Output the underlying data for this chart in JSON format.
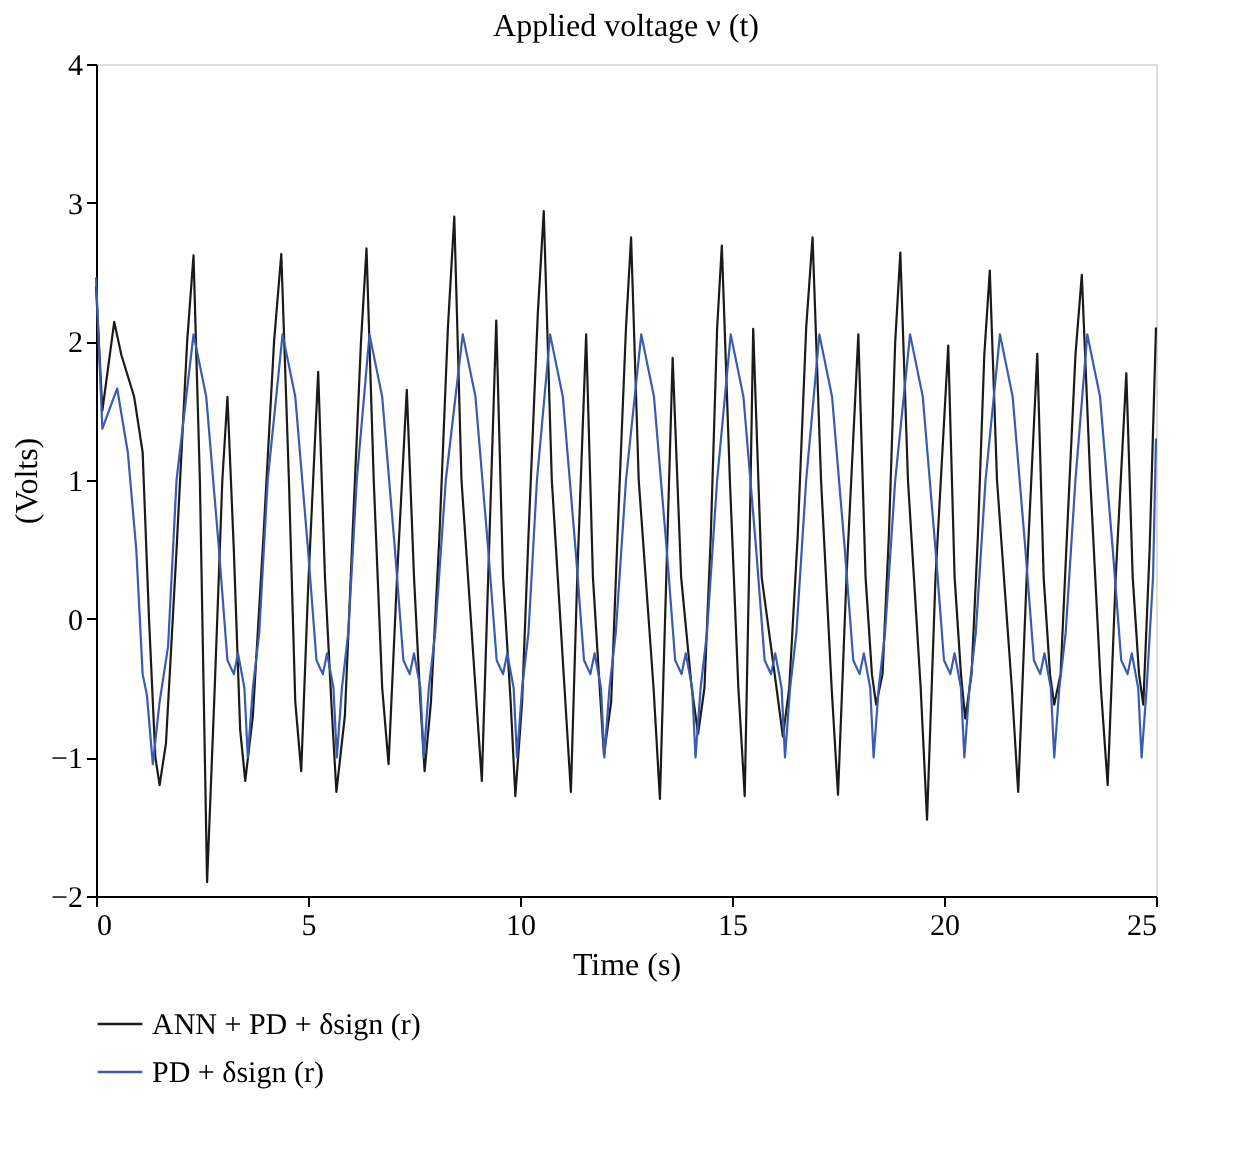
{
  "chart_data": {
    "type": "line",
    "title": "Applied voltage ν (t)",
    "xlabel": "Time (s)",
    "ylabel": "(Volts)",
    "xlim": [
      0,
      25
    ],
    "xticks": [
      0,
      5,
      10,
      15,
      20,
      25
    ],
    "ylim": [
      -2,
      4
    ],
    "yticks": [
      -2,
      -1,
      0,
      1,
      2,
      3,
      4
    ],
    "grid": false,
    "legend": "bottom",
    "series": [
      {
        "name": "ANN + PD + δsign (r)",
        "color": "#1a1a1a",
        "x": [
          0,
          0.15,
          0.43,
          0.6,
          0.9,
          1.1,
          1.25,
          1.4,
          1.5,
          1.65,
          1.9,
          2.15,
          2.3,
          2.45,
          2.62,
          2.8,
          2.98,
          3.1,
          3.25,
          3.4,
          3.52,
          3.7,
          3.95,
          4.2,
          4.37,
          4.55,
          4.7,
          4.84,
          5.0,
          5.24,
          5.4,
          5.55,
          5.67,
          5.87,
          6.05,
          6.25,
          6.38,
          6.55,
          6.75,
          6.9,
          7.1,
          7.33,
          7.5,
          7.65,
          7.75,
          7.9,
          8.1,
          8.3,
          8.45,
          8.62,
          8.95,
          9.1,
          9.25,
          9.44,
          9.6,
          9.78,
          9.89,
          10.05,
          10.2,
          10.42,
          10.56,
          10.75,
          11.05,
          11.2,
          11.35,
          11.56,
          11.72,
          11.88,
          11.98,
          12.15,
          12.3,
          12.5,
          12.62,
          12.8,
          13.15,
          13.3,
          13.45,
          13.6,
          13.8,
          14.05,
          14.2,
          14.35,
          14.5,
          14.65,
          14.76,
          14.95,
          15.15,
          15.3,
          15.4,
          15.5,
          15.7,
          16.05,
          16.2,
          16.35,
          16.55,
          16.75,
          16.9,
          17.1,
          17.35,
          17.5,
          17.7,
          17.98,
          18.15,
          18.3,
          18.4,
          18.55,
          18.7,
          18.85,
          18.97,
          19.15,
          19.45,
          19.6,
          19.8,
          20.1,
          20.25,
          20.4,
          20.5,
          20.65,
          20.8,
          20.95,
          21.08,
          21.25,
          21.6,
          21.75,
          21.95,
          22.2,
          22.35,
          22.5,
          22.6,
          22.75,
          22.9,
          23.1,
          23.25,
          23.45,
          23.7,
          23.86,
          24.05,
          24.3,
          24.45,
          24.6,
          24.7,
          24.85,
          25
        ],
        "values": [
          2.4,
          1.5,
          2.14,
          1.9,
          1.6,
          1.2,
          0.0,
          -1.0,
          -1.2,
          -0.9,
          0.5,
          2.0,
          2.62,
          1.0,
          -1.9,
          -0.5,
          1.0,
          1.6,
          0.5,
          -0.8,
          -1.17,
          -0.7,
          0.6,
          2.0,
          2.63,
          1.0,
          -0.6,
          -1.1,
          0.2,
          1.78,
          0.3,
          -0.6,
          -1.25,
          -0.7,
          0.6,
          2.0,
          2.67,
          1.0,
          -0.5,
          -1.05,
          0.3,
          1.65,
          0.3,
          -0.6,
          -1.1,
          -0.6,
          0.6,
          2.1,
          2.9,
          1.0,
          -0.5,
          -1.17,
          0.3,
          2.15,
          0.3,
          -0.6,
          -1.28,
          -0.6,
          0.6,
          2.2,
          2.94,
          1.0,
          -0.5,
          -1.25,
          0.3,
          2.05,
          0.3,
          -0.5,
          -0.98,
          -0.6,
          0.6,
          2.1,
          2.75,
          1.0,
          -0.5,
          -1.3,
          0.3,
          1.88,
          0.3,
          -0.5,
          -0.83,
          -0.5,
          0.6,
          2.1,
          2.69,
          1.0,
          -0.5,
          -1.28,
          0.3,
          2.09,
          0.3,
          -0.5,
          -0.85,
          -0.5,
          0.6,
          2.1,
          2.75,
          1.0,
          -0.5,
          -1.27,
          0.3,
          2.05,
          0.3,
          -0.4,
          -0.62,
          -0.4,
          0.6,
          2.0,
          2.64,
          1.0,
          -0.5,
          -1.45,
          0.3,
          1.97,
          0.3,
          -0.4,
          -0.72,
          -0.4,
          0.6,
          1.9,
          2.51,
          1.0,
          -0.5,
          -1.25,
          0.3,
          1.91,
          0.3,
          -0.4,
          -0.62,
          -0.4,
          0.6,
          1.9,
          2.48,
          1.0,
          -0.5,
          -1.2,
          0.3,
          1.77,
          0.3,
          -0.4,
          -0.62,
          0.5,
          2.1
        ]
      },
      {
        "name": "PD + δsign (r)",
        "color": "#3a5bb0",
        "x": [
          0,
          0.15,
          0.5,
          0.75,
          0.95,
          1.1,
          1.2,
          1.34,
          1.5,
          1.7,
          1.9,
          2.3,
          2.6,
          2.9,
          3.1,
          3.25,
          3.35,
          3.5,
          3.58,
          3.7,
          3.85,
          4.05,
          4.4,
          4.7,
          5.0,
          5.2,
          5.35,
          5.45,
          5.6,
          5.68,
          5.8,
          5.95,
          6.15,
          6.45,
          6.75,
          7.05,
          7.25,
          7.4,
          7.5,
          7.65,
          7.73,
          7.85,
          8.0,
          8.25,
          8.65,
          8.95,
          9.25,
          9.45,
          9.6,
          9.7,
          9.85,
          9.93,
          10.05,
          10.2,
          10.4,
          10.71,
          11.01,
          11.31,
          11.51,
          11.66,
          11.76,
          11.91,
          11.99,
          12.11,
          12.26,
          12.5,
          12.86,
          13.16,
          13.46,
          13.66,
          13.81,
          13.91,
          14.06,
          14.14,
          14.26,
          14.41,
          14.65,
          14.97,
          15.27,
          15.57,
          15.77,
          15.92,
          16.02,
          16.17,
          16.25,
          16.37,
          16.52,
          16.75,
          17.06,
          17.36,
          17.66,
          17.86,
          18.01,
          18.11,
          18.26,
          18.34,
          18.46,
          18.61,
          18.85,
          19.2,
          19.5,
          19.8,
          20.0,
          20.15,
          20.25,
          20.4,
          20.48,
          20.6,
          20.75,
          20.98,
          21.32,
          21.62,
          21.92,
          22.12,
          22.27,
          22.37,
          22.52,
          22.6,
          22.72,
          22.87,
          23.1,
          23.38,
          23.68,
          23.98,
          24.18,
          24.33,
          24.43,
          24.58,
          24.66,
          24.78,
          24.93,
          25
        ],
        "values": [
          2.46,
          1.37,
          1.66,
          1.2,
          0.5,
          -0.4,
          -0.55,
          -1.05,
          -0.6,
          -0.2,
          1.0,
          2.05,
          1.6,
          0.5,
          -0.3,
          -0.4,
          -0.25,
          -0.5,
          -1.0,
          -0.5,
          -0.1,
          1.0,
          2.05,
          1.6,
          0.5,
          -0.3,
          -0.4,
          -0.25,
          -0.5,
          -1.0,
          -0.5,
          -0.1,
          1.0,
          2.05,
          1.6,
          0.5,
          -0.3,
          -0.4,
          -0.25,
          -0.5,
          -1.0,
          -0.5,
          -0.1,
          1.0,
          2.05,
          1.6,
          0.5,
          -0.3,
          -0.4,
          -0.25,
          -0.5,
          -1.0,
          -0.5,
          -0.1,
          1.0,
          2.05,
          1.6,
          0.5,
          -0.3,
          -0.4,
          -0.25,
          -0.5,
          -1.0,
          -0.5,
          -0.1,
          1.0,
          2.05,
          1.6,
          0.5,
          -0.3,
          -0.4,
          -0.25,
          -0.5,
          -1.0,
          -0.5,
          -0.1,
          1.0,
          2.05,
          1.6,
          0.5,
          -0.3,
          -0.4,
          -0.25,
          -0.5,
          -1.0,
          -0.5,
          -0.1,
          1.0,
          2.05,
          1.6,
          0.5,
          -0.3,
          -0.4,
          -0.25,
          -0.5,
          -1.0,
          -0.5,
          -0.1,
          1.0,
          2.05,
          1.6,
          0.5,
          -0.3,
          -0.4,
          -0.25,
          -0.5,
          -1.0,
          -0.5,
          -0.1,
          1.0,
          2.05,
          1.6,
          0.5,
          -0.3,
          -0.4,
          -0.25,
          -0.5,
          -1.0,
          -0.5,
          -0.1,
          1.0,
          2.05,
          1.6,
          0.5,
          -0.3,
          -0.4,
          -0.25,
          -0.5,
          -1.0,
          -0.5,
          0.3,
          1.3
        ]
      }
    ]
  }
}
